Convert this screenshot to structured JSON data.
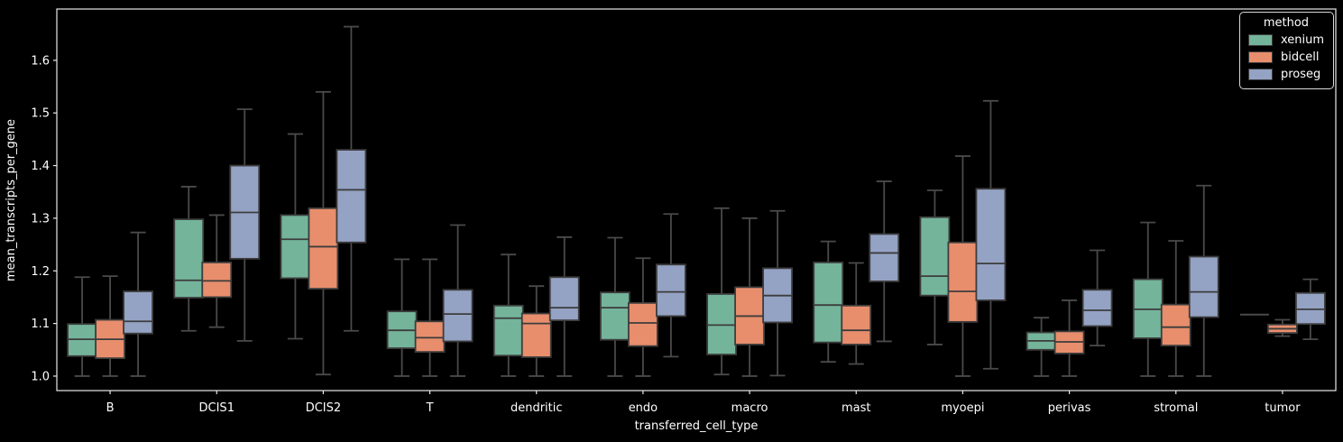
{
  "colors": {
    "background": "#000000",
    "text": "#ffffff",
    "spine": "#e8e8e8",
    "box_edge": "#3c3c3c",
    "whisker": "#4a4a4a"
  },
  "chart_data": {
    "type": "boxplot",
    "title": "",
    "xlabel": "transferred_cell_type",
    "ylabel": "mean_transcripts_per_gene",
    "ylim": [
      0.9725,
      1.6975
    ],
    "yticks": [
      "1.0",
      "1.1",
      "1.2",
      "1.3",
      "1.4",
      "1.5",
      "1.6"
    ],
    "grid": false,
    "categories": [
      "B",
      "DCIS1",
      "DCIS2",
      "T",
      "dendritic",
      "endo",
      "macro",
      "mast",
      "myoepi",
      "perivas",
      "stromal",
      "tumor"
    ],
    "legend": {
      "title": "method",
      "position": "upper right"
    },
    "box_stats_order": [
      "whisker_low",
      "q1",
      "median",
      "q3",
      "whisker_high"
    ],
    "series": [
      {
        "name": "xenium",
        "color": "#74b49a",
        "boxes": [
          [
            1.0,
            1.038,
            1.07,
            1.099,
            1.188
          ],
          [
            1.086,
            1.149,
            1.182,
            1.298,
            1.36
          ],
          [
            1.071,
            1.186,
            1.26,
            1.306,
            1.46
          ],
          [
            1.0,
            1.053,
            1.087,
            1.123,
            1.222
          ],
          [
            1.0,
            1.039,
            1.11,
            1.134,
            1.231
          ],
          [
            1.0,
            1.069,
            1.13,
            1.159,
            1.263
          ],
          [
            1.003,
            1.041,
            1.097,
            1.156,
            1.319
          ],
          [
            1.027,
            1.064,
            1.135,
            1.216,
            1.256
          ],
          [
            1.06,
            1.153,
            1.19,
            1.302,
            1.353
          ],
          [
            1.0,
            1.05,
            1.067,
            1.083,
            1.111
          ],
          [
            1.0,
            1.072,
            1.127,
            1.184,
            1.292
          ],
          [
            1.117,
            1.117,
            1.117,
            1.117,
            1.117
          ]
        ]
      },
      {
        "name": "bidcell",
        "color": "#e88e6d",
        "boxes": [
          [
            1.0,
            1.034,
            1.07,
            1.107,
            1.19
          ],
          [
            1.093,
            1.15,
            1.181,
            1.216,
            1.306
          ],
          [
            1.003,
            1.166,
            1.246,
            1.319,
            1.54
          ],
          [
            1.0,
            1.046,
            1.073,
            1.104,
            1.222
          ],
          [
            1.0,
            1.036,
            1.1,
            1.119,
            1.171
          ],
          [
            1.0,
            1.057,
            1.101,
            1.139,
            1.224
          ],
          [
            1.0,
            1.06,
            1.114,
            1.169,
            1.3
          ],
          [
            1.023,
            1.06,
            1.087,
            1.134,
            1.215
          ],
          [
            1.0,
            1.103,
            1.161,
            1.254,
            1.418
          ],
          [
            1.0,
            1.043,
            1.065,
            1.085,
            1.144
          ],
          [
            1.0,
            1.058,
            1.093,
            1.136,
            1.257
          ],
          [
            1.076,
            1.082,
            1.09,
            1.098,
            1.107
          ]
        ]
      },
      {
        "name": "proseg",
        "color": "#94a2c4",
        "boxes": [
          [
            1.0,
            1.081,
            1.104,
            1.161,
            1.273
          ],
          [
            1.067,
            1.223,
            1.311,
            1.4,
            1.507
          ],
          [
            1.086,
            1.254,
            1.354,
            1.43,
            1.664
          ],
          [
            1.0,
            1.066,
            1.118,
            1.164,
            1.287
          ],
          [
            1.0,
            1.106,
            1.13,
            1.188,
            1.264
          ],
          [
            1.037,
            1.114,
            1.16,
            1.212,
            1.308
          ],
          [
            1.001,
            1.102,
            1.153,
            1.205,
            1.314
          ],
          [
            1.066,
            1.18,
            1.234,
            1.27,
            1.37
          ],
          [
            1.014,
            1.144,
            1.214,
            1.356,
            1.523
          ],
          [
            1.058,
            1.095,
            1.125,
            1.164,
            1.239
          ],
          [
            1.0,
            1.112,
            1.16,
            1.227,
            1.362
          ],
          [
            1.07,
            1.099,
            1.127,
            1.158,
            1.184
          ]
        ]
      }
    ]
  }
}
